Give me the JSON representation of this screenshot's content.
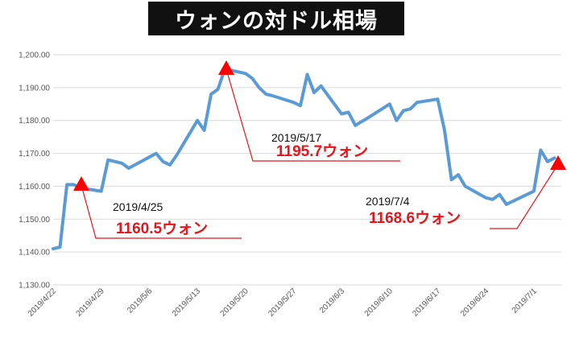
{
  "title": "ウォンの対ドル相場",
  "chart_data": {
    "type": "line",
    "title": "ウォンの対ドル相場",
    "ylim": [
      1130,
      1200
    ],
    "y_ticks": [
      "1,130.00",
      "1,140.00",
      "1,150.00",
      "1,160.00",
      "1,170.00",
      "1,180.00",
      "1,190.00",
      "1,200.00"
    ],
    "x_ticks": [
      "2019/4/22",
      "2019/4/29",
      "2019/5/6",
      "2019/5/13",
      "2019/5/20",
      "2019/5/27",
      "2019/6/3",
      "2019/6/10",
      "2019/6/17",
      "2019/6/24",
      "2019/7/1"
    ],
    "grid": true,
    "line_color": "#5b9bd5",
    "marker_color": "#ff0000",
    "series": [
      {
        "x": [
          "2019/4/22",
          "2019/4/23",
          "2019/4/24",
          "2019/4/25",
          "2019/4/26",
          "2019/4/29",
          "2019/4/30",
          "2019/5/2",
          "2019/5/3",
          "2019/5/7",
          "2019/5/8",
          "2019/5/9",
          "2019/5/10",
          "2019/5/13",
          "2019/5/14",
          "2019/5/15",
          "2019/5/16",
          "2019/5/17",
          "2019/5/20",
          "2019/5/21",
          "2019/5/22",
          "2019/5/23",
          "2019/5/24",
          "2019/5/27",
          "2019/5/28",
          "2019/5/29",
          "2019/5/30",
          "2019/5/31",
          "2019/6/3",
          "2019/6/4",
          "2019/6/5",
          "2019/6/7",
          "2019/6/10",
          "2019/6/11",
          "2019/6/12",
          "2019/6/13",
          "2019/6/14",
          "2019/6/17",
          "2019/6/18",
          "2019/6/19",
          "2019/6/20",
          "2019/6/21",
          "2019/6/24",
          "2019/6/25",
          "2019/6/26",
          "2019/6/27",
          "2019/6/28",
          "2019/7/1",
          "2019/7/2",
          "2019/7/3",
          "2019/7/4"
        ],
        "y": [
          1141.0,
          1141.5,
          1160.5,
          1160.5,
          1159.5,
          1158.5,
          1168.0,
          1167.0,
          1165.5,
          1170.0,
          1167.5,
          1166.5,
          1169.5,
          1180.0,
          1177.0,
          1188.0,
          1189.5,
          1195.7,
          1194.3,
          1192.8,
          1190.0,
          1188.0,
          1187.5,
          1185.5,
          1184.5,
          1194.0,
          1188.5,
          1190.5,
          1182.0,
          1182.5,
          1178.5,
          1181.0,
          1185.0,
          1180.0,
          1183.0,
          1183.5,
          1185.5,
          1186.5,
          1177.0,
          1162.0,
          1163.5,
          1160.0,
          1156.5,
          1156.0,
          1157.5,
          1154.5,
          1155.5,
          1158.5,
          1171.0,
          1167.5,
          1168.6
        ]
      }
    ],
    "annotations": [
      {
        "date": "2019/4/25",
        "value": "1160.5ウォン"
      },
      {
        "date": "2019/5/17",
        "value": "1195.7ウォン"
      },
      {
        "date": "2019/7/4",
        "value": "1168.6ウォン"
      }
    ]
  }
}
